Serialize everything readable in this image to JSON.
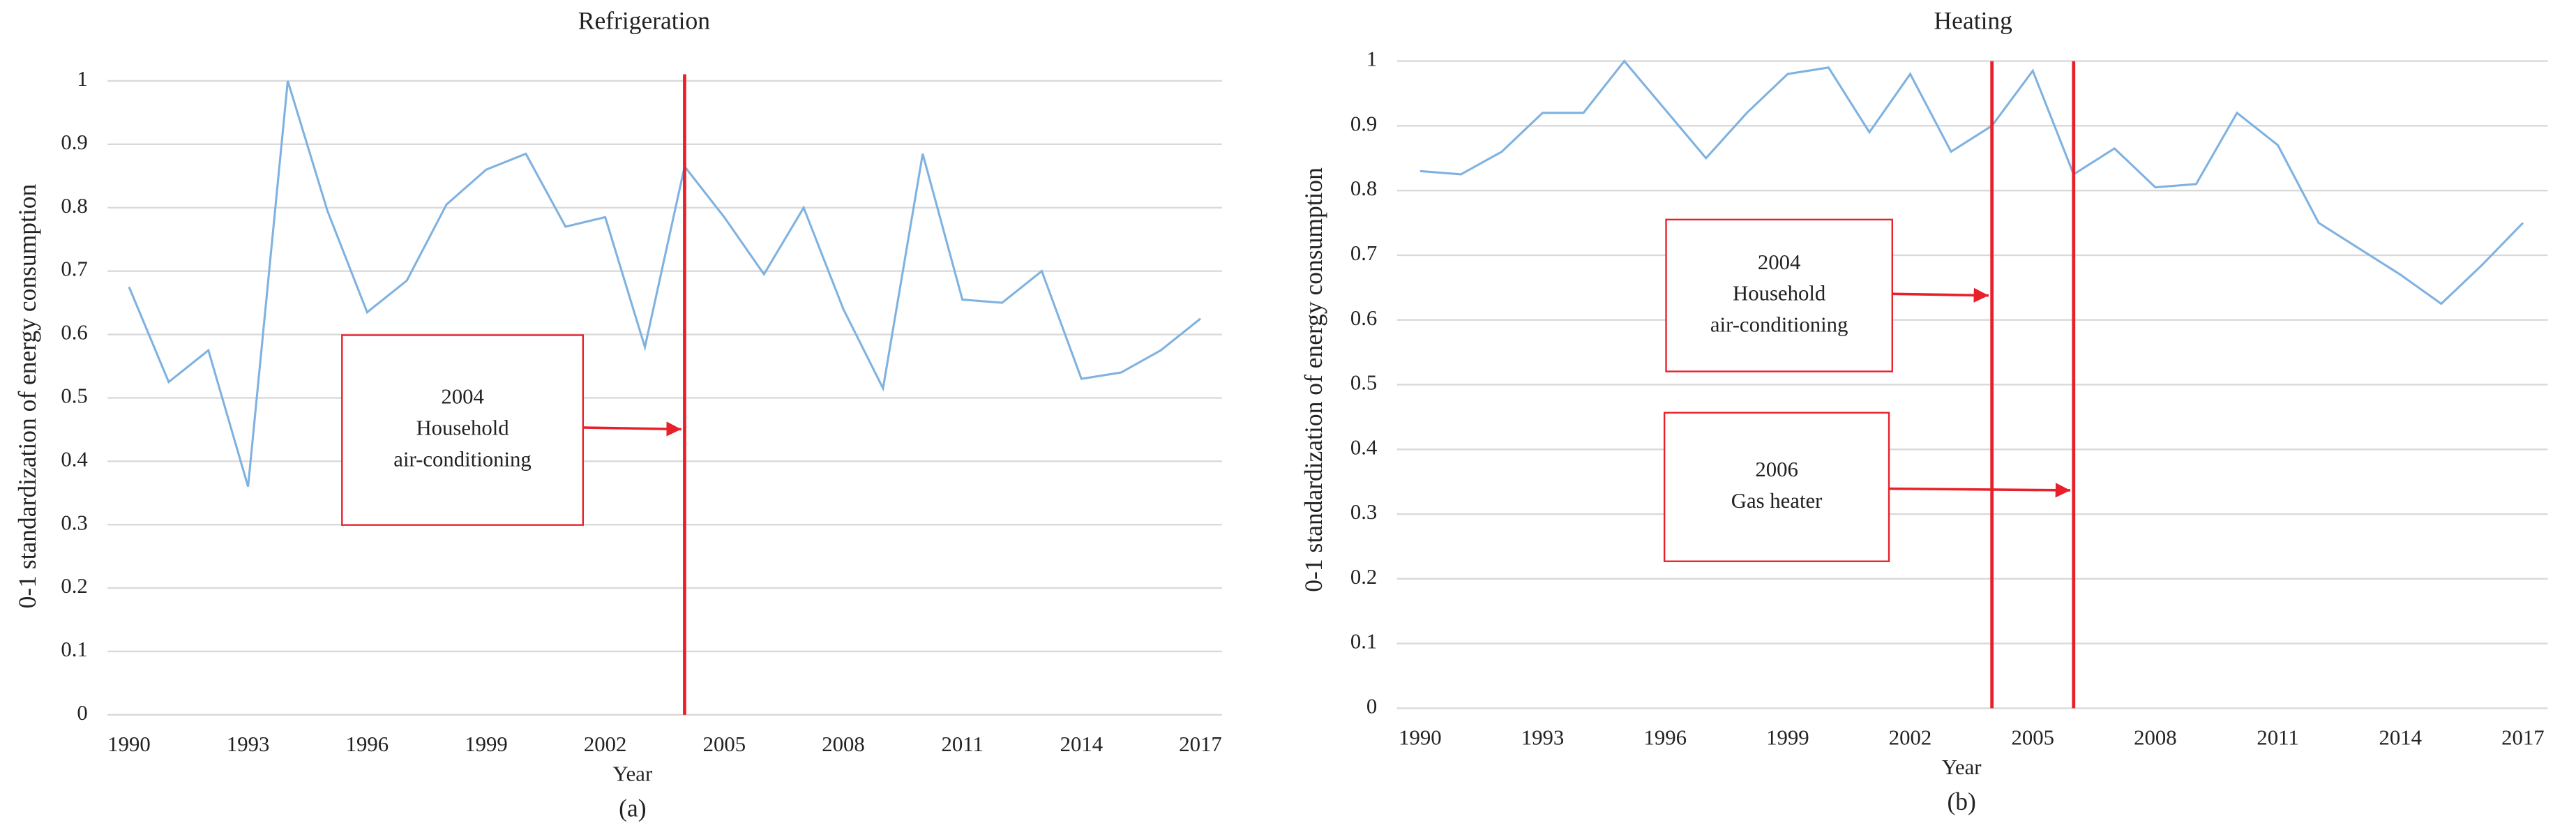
{
  "chart_data": [
    {
      "type": "line",
      "title": "Refrigeration",
      "x_label": "Year",
      "y_label": "0-1 standardization of energy consumption",
      "caption": "(a)",
      "x": [
        1990,
        1991,
        1992,
        1993,
        1994,
        1995,
        1996,
        1997,
        1998,
        1999,
        2000,
        2001,
        2002,
        2003,
        2004,
        2005,
        2006,
        2007,
        2008,
        2009,
        2010,
        2011,
        2012,
        2013,
        2014,
        2015,
        2016,
        2017
      ],
      "series": [
        {
          "color": "#7fb2e0",
          "values": [
            0.675,
            0.525,
            0.575,
            0.36,
            1.0,
            0.795,
            0.635,
            0.685,
            0.805,
            0.86,
            0.885,
            0.77,
            0.785,
            0.58,
            0.865,
            0.785,
            0.695,
            0.8,
            0.64,
            0.515,
            0.885,
            0.655,
            0.65,
            0.7,
            0.53,
            0.54,
            0.575,
            0.625
          ]
        }
      ],
      "xlim": [
        1990,
        2017
      ],
      "xticks": [
        1990,
        1993,
        1996,
        1999,
        2002,
        2005,
        2008,
        2011,
        2014,
        2017
      ],
      "ylim": [
        0,
        1
      ],
      "yticks": [
        0,
        0.1,
        0.2,
        0.3,
        0.4,
        0.5,
        0.6,
        0.7,
        0.8,
        0.9,
        1
      ],
      "grid": true,
      "annotations": [
        {
          "x": 2004,
          "color": "#e8202a",
          "lines": [
            "2004",
            "Household",
            "air-conditioning"
          ]
        }
      ]
    },
    {
      "type": "line",
      "title": "Heating",
      "x_label": "Year",
      "y_label": "0-1 standardization of energy consumption",
      "caption": "(b)",
      "x": [
        1990,
        1991,
        1992,
        1993,
        1994,
        1995,
        1996,
        1997,
        1998,
        1999,
        2000,
        2001,
        2002,
        2003,
        2004,
        2005,
        2006,
        2007,
        2008,
        2009,
        2010,
        2011,
        2012,
        2013,
        2014,
        2015,
        2016,
        2017
      ],
      "series": [
        {
          "color": "#7fb2e0",
          "values": [
            0.83,
            0.825,
            0.86,
            0.92,
            0.92,
            1.0,
            0.925,
            0.85,
            0.92,
            0.98,
            0.99,
            0.89,
            0.98,
            0.86,
            0.9,
            0.985,
            0.825,
            0.865,
            0.805,
            0.81,
            0.92,
            0.87,
            0.75,
            0.71,
            0.67,
            0.625,
            0.685,
            0.75
          ]
        }
      ],
      "xlim": [
        1990,
        2017
      ],
      "xticks": [
        1990,
        1993,
        1996,
        1999,
        2002,
        2005,
        2008,
        2011,
        2014,
        2017
      ],
      "ylim": [
        0,
        1
      ],
      "yticks": [
        0,
        0.1,
        0.2,
        0.3,
        0.4,
        0.5,
        0.6,
        0.7,
        0.8,
        0.9,
        1
      ],
      "grid": true,
      "annotations": [
        {
          "x": 2004,
          "color": "#e8202a",
          "lines": [
            "2004",
            "Household",
            "air-conditioning"
          ]
        },
        {
          "x": 2006,
          "color": "#e8202a",
          "lines": [
            "2006",
            "Gas heater"
          ]
        }
      ]
    }
  ]
}
